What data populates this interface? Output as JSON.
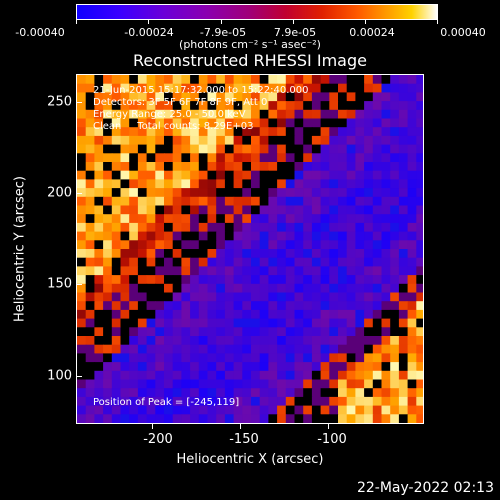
{
  "colorbar": {
    "tick_labels": [
      "-0.00040",
      "-0.00024",
      "-7.9e-05",
      "7.9e-05",
      "0.00024",
      "0.00040"
    ],
    "units": "(photons cm⁻² s⁻¹ asec⁻²)",
    "range": [
      -0.0004,
      0.0004
    ]
  },
  "plot": {
    "title": "Reconstructed RHESSI Image",
    "info_lines": [
      "21-Jun-2015 15:17:32.000 to 15:22:40.000",
      "Detectors: 3F 5F 6F 7F 8F 9F, Att 0",
      "Energy Range: 25.0 - 50.0 keV",
      "Clean     Total counts: 8.29E+03"
    ],
    "peak_text": "Position of Peak = [-245,119]",
    "x_axis_title": "Heliocentric X (arcsec)",
    "y_axis_title": "Heliocentric Y (arcsec)",
    "x_tick_labels": [
      "-200",
      "-150",
      "-100"
    ],
    "y_tick_labels": [
      "250",
      "200",
      "150",
      "100"
    ],
    "x_range": [
      -243,
      -46
    ],
    "y_range": [
      74,
      271
    ]
  },
  "timestamp": "22-May-2022 02:13",
  "colors": {
    "background": "#000000",
    "foreground": "#ffffff"
  }
}
